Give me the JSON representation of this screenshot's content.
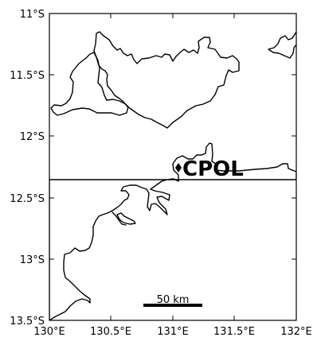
{
  "map": {
    "lat_range": [
      "11°S",
      "13.5°S"
    ],
    "lon_range": [
      "130°E",
      "132°E"
    ],
    "y_ticks": [
      "11°S",
      "11.5°S",
      "12°S",
      "12.5°S",
      "13°S",
      "13.5°S"
    ],
    "x_ticks": [
      "130°E",
      "130.5°E",
      "131°E",
      "131.5°E",
      "132°E"
    ],
    "station": {
      "label": "CPOL",
      "lat": -12.25,
      "lon": 131.04
    },
    "scale_bar": {
      "label": "50 km",
      "length_km": 50
    }
  }
}
